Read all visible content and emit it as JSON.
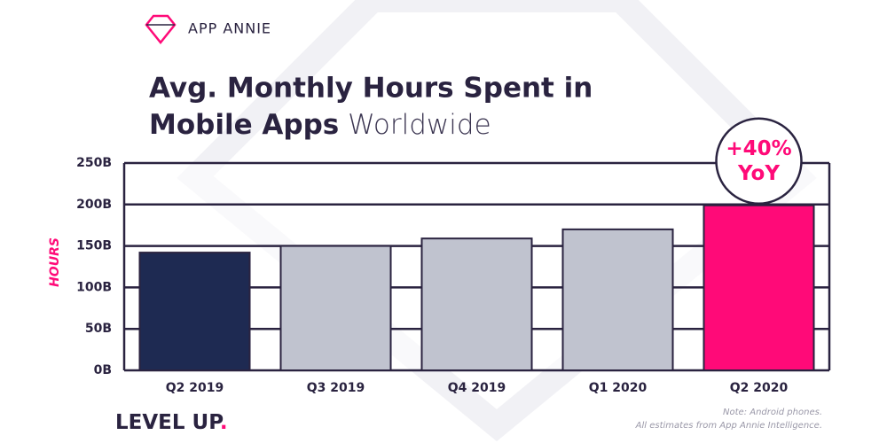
{
  "brand": "APP ANNIE",
  "chart_data": {
    "type": "bar",
    "title": [
      "Avg. Monthly Hours Spent in",
      "Mobile Apps"
    ],
    "subtitle": "Worldwide",
    "y_label": "HOURS",
    "categories": [
      "Q2 2019",
      "Q3 2019",
      "Q4 2019",
      "Q1 2020",
      "Q2 2020"
    ],
    "values": [
      142,
      150,
      159,
      170,
      199
    ],
    "colors": [
      "#1e2a52",
      "#c0c3cf",
      "#c0c3cf",
      "#c0c3cf",
      "#ff0a78"
    ],
    "ylim": [
      0,
      250
    ],
    "yticks": [
      {
        "value": 0,
        "label": "0B"
      },
      {
        "value": 50,
        "label": "50B"
      },
      {
        "value": 100,
        "label": "100B"
      },
      {
        "value": 150,
        "label": "150B"
      },
      {
        "value": 200,
        "label": "200B"
      },
      {
        "value": 250,
        "label": "250B"
      }
    ],
    "grid": true,
    "annotation": [
      "+40%",
      "YoY"
    ]
  },
  "footer": {
    "tagline": "LEVEL UP",
    "tagline_mark": ".",
    "notes": [
      "Note: Android phones.",
      "All estimates from App Annie Intelligence."
    ]
  }
}
